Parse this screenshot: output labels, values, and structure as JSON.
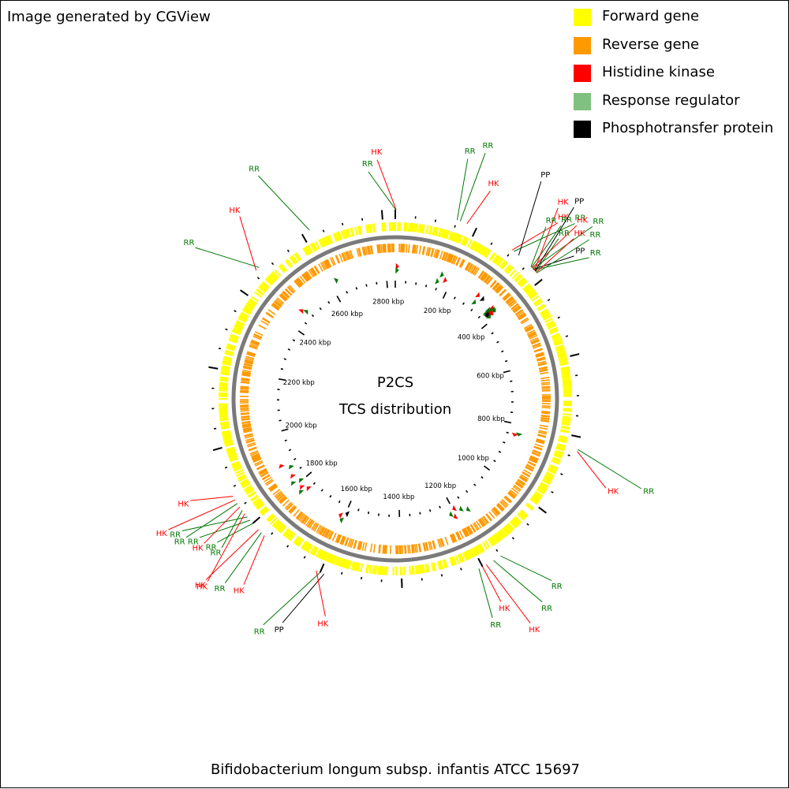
{
  "credit": "Image generated by CGView",
  "caption": "Bifidobacterium longum subsp. infantis ATCC 15697",
  "center": {
    "line1": "P2CS",
    "line2": "TCS distribution"
  },
  "legend": [
    {
      "label": "Forward gene",
      "color": "#ffff00"
    },
    {
      "label": "Reverse gene",
      "color": "#ff9900"
    },
    {
      "label": "Histidine kinase",
      "color": "#ff0000"
    },
    {
      "label": "Response regulator",
      "color": "#80c080"
    },
    {
      "label": "Phosphotransfer protein",
      "color": "#000000"
    }
  ],
  "genome_kbp": 2832,
  "axis_labels": [
    "200 kbp",
    "400 kbp",
    "600 kbp",
    "800 kbp",
    "1000 kbp",
    "1200 kbp",
    "1400 kbp",
    "1600 kbp",
    "1800 kbp",
    "2000 kbp",
    "2200 kbp",
    "2400 kbp",
    "2600 kbp",
    "2800 kbp"
  ],
  "axis_values_kbp": [
    200,
    400,
    600,
    800,
    1000,
    1200,
    1400,
    1600,
    1800,
    2000,
    2200,
    2400,
    2600,
    2800
  ],
  "feature_labels": [
    {
      "text": "RR",
      "type": "RR",
      "kbp": 1
    },
    {
      "text": "HK",
      "type": "HK",
      "kbp": 2
    },
    {
      "text": "RR",
      "type": "RR",
      "kbp": 150
    },
    {
      "text": "RR",
      "type": "RR",
      "kbp": 158
    },
    {
      "text": "HK",
      "type": "HK",
      "kbp": 175
    },
    {
      "text": "HK",
      "type": "HK",
      "kbp": 300
    },
    {
      "text": "RR",
      "type": "RR",
      "kbp": 305
    },
    {
      "text": "PP",
      "type": "PP",
      "kbp": 320
    },
    {
      "text": "RR",
      "type": "RR",
      "kbp": 360
    },
    {
      "text": "RR",
      "type": "RR",
      "kbp": 362
    },
    {
      "text": "HK",
      "type": "HK",
      "kbp": 364
    },
    {
      "text": "RR",
      "type": "RR",
      "kbp": 366
    },
    {
      "text": "PP",
      "type": "PP",
      "kbp": 368
    },
    {
      "text": "RR",
      "type": "RR",
      "kbp": 370
    },
    {
      "text": "HK",
      "type": "HK",
      "kbp": 372
    },
    {
      "text": "PP",
      "type": "PP",
      "kbp": 374
    },
    {
      "text": "RR",
      "type": "RR",
      "kbp": 376
    },
    {
      "text": "HK",
      "type": "HK",
      "kbp": 378
    },
    {
      "text": "RR",
      "type": "RR",
      "kbp": 380
    },
    {
      "text": "RR",
      "type": "RR",
      "kbp": 830
    },
    {
      "text": "HK",
      "type": "HK",
      "kbp": 835
    },
    {
      "text": "RR",
      "type": "RR",
      "kbp": 1150
    },
    {
      "text": "RR",
      "type": "RR",
      "kbp": 1170
    },
    {
      "text": "HK",
      "type": "HK",
      "kbp": 1190
    },
    {
      "text": "HK",
      "type": "HK",
      "kbp": 1200
    },
    {
      "text": "RR",
      "type": "RR",
      "kbp": 1210
    },
    {
      "text": "PP",
      "type": "PP",
      "kbp": 1590
    },
    {
      "text": "RR",
      "type": "RR",
      "kbp": 1600
    },
    {
      "text": "HK",
      "type": "HK",
      "kbp": 1610
    },
    {
      "text": "HK",
      "type": "HK",
      "kbp": 1760
    },
    {
      "text": "RR",
      "type": "RR",
      "kbp": 1770
    },
    {
      "text": "HK",
      "type": "HK",
      "kbp": 1780
    },
    {
      "text": "RR",
      "type": "RR",
      "kbp": 1800
    },
    {
      "text": "RR",
      "type": "RR",
      "kbp": 1810
    },
    {
      "text": "RR",
      "type": "RR",
      "kbp": 1820
    },
    {
      "text": "HK",
      "type": "HK",
      "kbp": 1830
    },
    {
      "text": "RR",
      "type": "RR",
      "kbp": 1840
    },
    {
      "text": "HK",
      "type": "HK",
      "kbp": 1850
    },
    {
      "text": "RR",
      "type": "RR",
      "kbp": 1860
    },
    {
      "text": "HK",
      "type": "HK",
      "kbp": 1870
    },
    {
      "text": "HK",
      "type": "HK",
      "kbp": 1880
    },
    {
      "text": "HK",
      "type": "HK",
      "kbp": 2460
    },
    {
      "text": "RR",
      "type": "RR",
      "kbp": 2470
    },
    {
      "text": "RR",
      "type": "RR",
      "kbp": 2620
    }
  ],
  "tcs_markers": [
    {
      "type": "HK",
      "kbp": 2
    },
    {
      "type": "RR",
      "kbp": 1
    },
    {
      "type": "RR",
      "kbp": 150
    },
    {
      "type": "RR",
      "kbp": 158
    },
    {
      "type": "HK",
      "kbp": 175
    },
    {
      "type": "RR",
      "kbp": 305
    },
    {
      "type": "HK",
      "kbp": 300
    },
    {
      "type": "RR",
      "kbp": 360
    },
    {
      "type": "RR",
      "kbp": 362
    },
    {
      "type": "HK",
      "kbp": 364
    },
    {
      "type": "RR",
      "kbp": 366
    },
    {
      "type": "PP",
      "kbp": 368
    },
    {
      "type": "RR",
      "kbp": 370
    },
    {
      "type": "HK",
      "kbp": 372
    },
    {
      "type": "PP",
      "kbp": 374
    },
    {
      "type": "RR",
      "kbp": 376
    },
    {
      "type": "HK",
      "kbp": 378
    },
    {
      "type": "RR",
      "kbp": 380
    },
    {
      "type": "PP",
      "kbp": 320
    },
    {
      "type": "RR",
      "kbp": 830
    },
    {
      "type": "HK",
      "kbp": 835
    },
    {
      "type": "RR",
      "kbp": 1150
    },
    {
      "type": "RR",
      "kbp": 1170
    },
    {
      "type": "HK",
      "kbp": 1190
    },
    {
      "type": "HK",
      "kbp": 1200
    },
    {
      "type": "RR",
      "kbp": 1210
    },
    {
      "type": "PP",
      "kbp": 1590
    },
    {
      "type": "RR",
      "kbp": 1600
    },
    {
      "type": "HK",
      "kbp": 1610
    },
    {
      "type": "HK",
      "kbp": 1760
    },
    {
      "type": "RR",
      "kbp": 1770
    },
    {
      "type": "HK",
      "kbp": 1780
    },
    {
      "type": "RR",
      "kbp": 1800
    },
    {
      "type": "RR",
      "kbp": 1810
    },
    {
      "type": "HK",
      "kbp": 1830
    },
    {
      "type": "RR",
      "kbp": 1860
    },
    {
      "type": "HK",
      "kbp": 1880
    },
    {
      "type": "HK",
      "kbp": 2460
    },
    {
      "type": "RR",
      "kbp": 2470
    },
    {
      "type": "RR",
      "kbp": 2620
    }
  ],
  "type_colors": {
    "HK": "#ff0000",
    "RR": "#007700",
    "PP": "#000000"
  }
}
